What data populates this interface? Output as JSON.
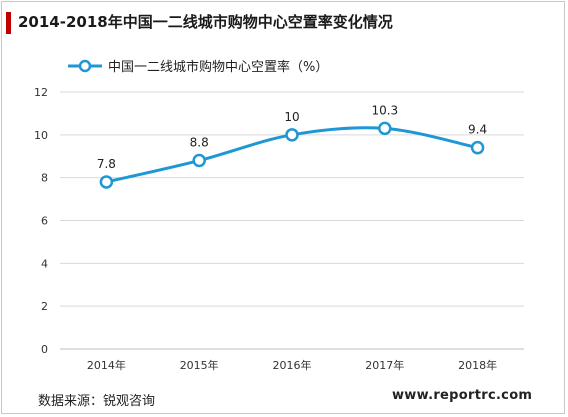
{
  "title": "2014-2018年中国一二线城市购物中心空置率变化情况",
  "source": "数据来源：锐观咨询",
  "website": "www.reportrc.com",
  "colors": {
    "series": "#1f97d4",
    "title_accent": "#c00000",
    "grid": "#d9d9d9"
  },
  "chart_data": {
    "type": "line",
    "title": "",
    "xlabel": "",
    "ylabel": "",
    "categories": [
      "2014年",
      "2015年",
      "2016年",
      "2017年",
      "2018年"
    ],
    "series": [
      {
        "name": "中国一二线城市购物中心空置率（%）",
        "values": [
          7.8,
          8.8,
          10,
          10.3,
          9.4
        ]
      }
    ],
    "data_labels": [
      "7.8",
      "8.8",
      "10",
      "10.3",
      "9.4"
    ],
    "ylim": [
      0,
      12
    ],
    "yticks": [
      0,
      2,
      4,
      6,
      8,
      10,
      12
    ],
    "grid": true,
    "smooth": true,
    "legend": "top-left"
  }
}
